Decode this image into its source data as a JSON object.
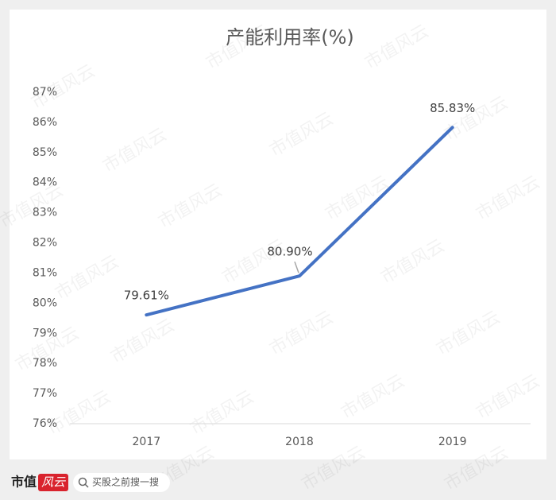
{
  "chart_data": {
    "type": "line",
    "title": "产能利用率(%)",
    "categories": [
      "2017",
      "2018",
      "2019"
    ],
    "series": [
      {
        "name": "产能利用率",
        "color": "#4472c4",
        "values": [
          79.61,
          80.9,
          85.83
        ],
        "value_labels": [
          "79.61%",
          "80.90%",
          "85.83%"
        ]
      }
    ],
    "ylim": [
      76,
      87
    ],
    "yticks": [
      {
        "value": 76,
        "label": "76%"
      },
      {
        "value": 77,
        "label": "77%"
      },
      {
        "value": 78,
        "label": "78%"
      },
      {
        "value": 79,
        "label": "79%"
      },
      {
        "value": 80,
        "label": "80%"
      },
      {
        "value": 81,
        "label": "81%"
      },
      {
        "value": 82,
        "label": "82%"
      },
      {
        "value": 83,
        "label": "83%"
      },
      {
        "value": 84,
        "label": "84%"
      },
      {
        "value": 85,
        "label": "85%"
      },
      {
        "value": 86,
        "label": "86%"
      },
      {
        "value": 87,
        "label": "87%"
      }
    ],
    "grid": false
  },
  "watermark": "市值风云",
  "footer": {
    "logo_left": "市值",
    "logo_right": "风云",
    "search": "买股之前搜一搜"
  }
}
